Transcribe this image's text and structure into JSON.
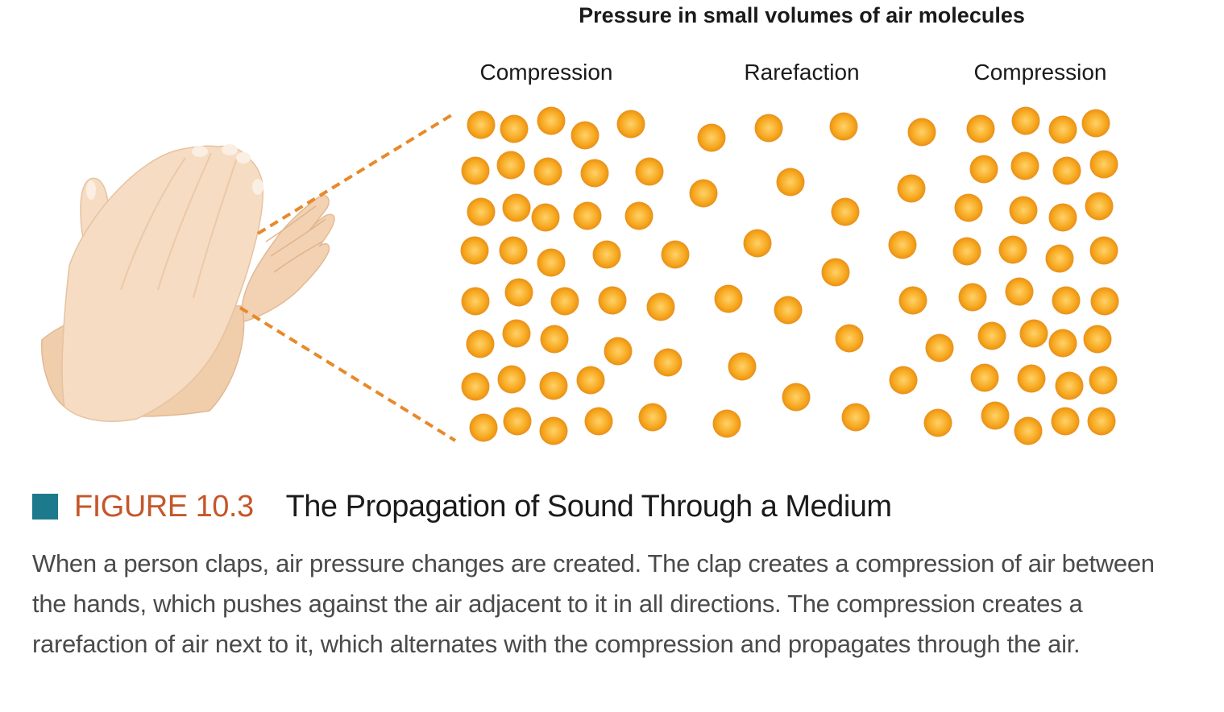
{
  "diagram": {
    "title": "Pressure in small volumes of air molecules",
    "regions": [
      {
        "label": "Compression"
      },
      {
        "label": "Rarefaction"
      },
      {
        "label": "Compression"
      }
    ],
    "colors": {
      "molecule_fill": "#f7a81e",
      "molecule_center": "#ffd26a",
      "molecule_edge": "#e8901a",
      "dashed_line": "#e8892a",
      "skin": "#f6dcc2",
      "skin_shadow": "#e9c4a2"
    },
    "icons": [
      "hands-clapping-icon",
      "molecule-dot-icon"
    ]
  },
  "figure": {
    "number": "FIGURE 10.3",
    "title": "The Propagation of Sound Through a Medium",
    "caption": "When a person claps, air pressure changes are created. The clap creates a compression of air between the hands, which pushes against the air adjacent to it in all directions. The compression creates a rarefaction of air next to it, which alternates with the compression and propagates through the air.",
    "colors": {
      "square": "#1d7a8c",
      "number": "#c4572a"
    }
  }
}
